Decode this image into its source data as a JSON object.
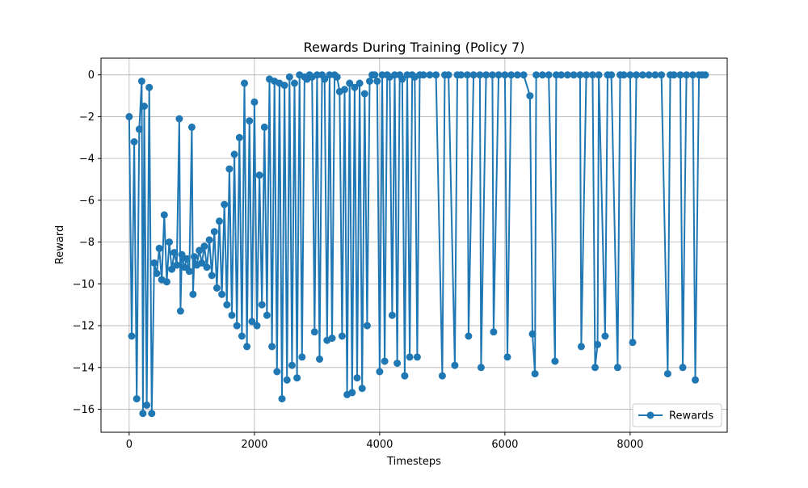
{
  "chart_data": {
    "type": "line",
    "title": "Rewards During Training (Policy 7)",
    "xlabel": "Timesteps",
    "ylabel": "Reward",
    "xlim": [
      -450,
      9550
    ],
    "ylim": [
      -17.1,
      0.8
    ],
    "xticks": [
      0,
      2000,
      4000,
      6000,
      8000
    ],
    "xtick_labels": [
      "0",
      "2000",
      "4000",
      "6000",
      "8000"
    ],
    "yticks": [
      0,
      -2,
      -4,
      -6,
      -8,
      -10,
      -12,
      -14,
      -16
    ],
    "ytick_labels": [
      "0",
      "−2",
      "−4",
      "−6",
      "−8",
      "−10",
      "−12",
      "−14",
      "−16"
    ],
    "grid": true,
    "legend_position": "lower-right",
    "color": "#1f77b4",
    "marker": "circle",
    "series": [
      {
        "name": "Rewards",
        "x": [
          0,
          40,
          80,
          120,
          160,
          200,
          220,
          240,
          280,
          320,
          360,
          400,
          440,
          480,
          520,
          560,
          600,
          640,
          680,
          720,
          760,
          800,
          820,
          840,
          880,
          920,
          960,
          1000,
          1020,
          1040,
          1080,
          1120,
          1160,
          1200,
          1240,
          1280,
          1320,
          1360,
          1400,
          1440,
          1480,
          1520,
          1560,
          1600,
          1640,
          1680,
          1720,
          1760,
          1800,
          1840,
          1880,
          1920,
          1960,
          2000,
          2040,
          2080,
          2120,
          2160,
          2200,
          2240,
          2280,
          2320,
          2360,
          2400,
          2440,
          2480,
          2520,
          2560,
          2600,
          2640,
          2680,
          2720,
          2760,
          2800,
          2840,
          2880,
          2920,
          2960,
          3000,
          3040,
          3080,
          3120,
          3160,
          3200,
          3240,
          3280,
          3320,
          3360,
          3400,
          3440,
          3480,
          3520,
          3560,
          3600,
          3640,
          3680,
          3720,
          3760,
          3800,
          3840,
          3880,
          3920,
          3960,
          4000,
          4040,
          4080,
          4120,
          4160,
          4200,
          4240,
          4280,
          4320,
          4360,
          4400,
          4440,
          4480,
          4520,
          4560,
          4600,
          4640,
          4700,
          4800,
          4900,
          5000,
          5040,
          5100,
          5200,
          5240,
          5300,
          5400,
          5420,
          5500,
          5600,
          5620,
          5700,
          5800,
          5820,
          5900,
          6000,
          6040,
          6100,
          6200,
          6300,
          6400,
          6440,
          6480,
          6500,
          6600,
          6700,
          6800,
          6820,
          6900,
          7000,
          7100,
          7200,
          7220,
          7300,
          7400,
          7440,
          7480,
          7500,
          7600,
          7640,
          7700,
          7800,
          7840,
          7900,
          8000,
          8040,
          8100,
          8200,
          8300,
          8400,
          8500,
          8600,
          8640,
          8700,
          8800,
          8840,
          8900,
          9000,
          9040,
          9100,
          9150,
          9200
        ],
        "y": [
          -2.0,
          -12.5,
          -3.2,
          -15.5,
          -2.6,
          -0.3,
          -16.2,
          -1.5,
          -15.8,
          -0.6,
          -16.2,
          -9.0,
          -9.5,
          -8.3,
          -9.8,
          -6.7,
          -9.9,
          -8.0,
          -9.3,
          -8.5,
          -9.1,
          -2.1,
          -11.3,
          -8.6,
          -9.2,
          -8.8,
          -9.4,
          -2.5,
          -10.5,
          -8.7,
          -9.1,
          -8.4,
          -9.0,
          -8.2,
          -9.2,
          -7.9,
          -9.6,
          -7.5,
          -10.2,
          -7.0,
          -10.5,
          -6.2,
          -11.0,
          -4.5,
          -11.5,
          -3.8,
          -12.0,
          -3.0,
          -12.5,
          -0.4,
          -13.0,
          -2.2,
          -11.8,
          -1.3,
          -12.0,
          -4.8,
          -11.0,
          -2.5,
          -11.5,
          -0.2,
          -13.0,
          -0.3,
          -14.2,
          -0.4,
          -15.5,
          -0.5,
          -14.6,
          -0.1,
          -13.9,
          -0.4,
          -14.5,
          0.0,
          -13.5,
          -0.1,
          -0.2,
          0.0,
          -0.1,
          -12.3,
          0.0,
          -13.6,
          0.0,
          -0.2,
          -12.7,
          0.0,
          -12.6,
          0.0,
          -0.1,
          -0.8,
          -12.5,
          -0.7,
          -15.3,
          -0.4,
          -15.2,
          -0.6,
          -14.5,
          -0.4,
          -15.0,
          -0.9,
          -12.0,
          -0.3,
          0.0,
          0.0,
          -0.3,
          -14.2,
          0.0,
          -13.7,
          0.0,
          -0.1,
          -11.5,
          0.0,
          -13.8,
          0.0,
          -0.2,
          -14.4,
          0.0,
          -13.5,
          0.0,
          -0.1,
          -13.5,
          0.0,
          0.0,
          0.0,
          0.0,
          -14.4,
          0.0,
          0.0,
          -13.9,
          0.0,
          0.0,
          0.0,
          -12.5,
          0.0,
          0.0,
          -14.0,
          0.0,
          0.0,
          -12.3,
          0.0,
          0.0,
          -13.5,
          0.0,
          0.0,
          0.0,
          -1.0,
          -12.4,
          -14.3,
          0.0,
          0.0,
          0.0,
          -13.7,
          0.0,
          0.0,
          0.0,
          0.0,
          0.0,
          -13.0,
          0.0,
          0.0,
          -14.0,
          -12.9,
          0.0,
          -12.5,
          0.0,
          0.0,
          -14.0,
          0.0,
          0.0,
          0.0,
          -12.8,
          0.0,
          0.0,
          0.0,
          0.0,
          0.0,
          -14.3,
          0.0,
          0.0,
          0.0,
          -14.0,
          0.0,
          0.0,
          -14.6,
          0.0,
          0.0,
          0.0
        ]
      }
    ]
  }
}
